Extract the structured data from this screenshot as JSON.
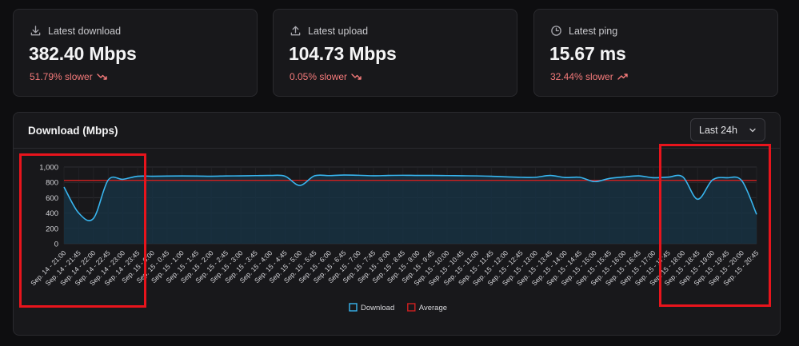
{
  "stats": [
    {
      "label": "Latest download",
      "value": "382.40 Mbps",
      "change": "51.79% slower",
      "trend": "down",
      "icon": "download-icon"
    },
    {
      "label": "Latest upload",
      "value": "104.73 Mbps",
      "change": "0.05% slower",
      "trend": "down",
      "icon": "upload-icon"
    },
    {
      "label": "Latest ping",
      "value": "15.67 ms",
      "change": "32.44% slower",
      "trend": "up",
      "icon": "clock-icon"
    }
  ],
  "chart_card": {
    "title": "Download (Mbps)",
    "range_select": "Last 24h"
  },
  "colors": {
    "download": "#38b6f0",
    "average": "#d02020",
    "negative": "#f47a7a",
    "highlight": "#e8141c"
  },
  "chart_data": {
    "type": "line",
    "ylim": [
      0,
      1000
    ],
    "yticks": [
      "0",
      "200",
      "400",
      "600",
      "800",
      "1,000"
    ],
    "legend": [
      "Download",
      "Average"
    ],
    "average": 826,
    "categories": [
      "Sep. 14 - 21:00",
      "Sep. 14 - 21:45",
      "Sep. 14 - 22:00",
      "Sep. 14 - 22:45",
      "Sep. 14 - 23:00",
      "Sep. 14 - 23:45",
      "Sep. 15 - 0:00",
      "Sep. 15 - 0:45",
      "Sep. 15 - 1:00",
      "Sep. 15 - 1:45",
      "Sep. 15 - 2:00",
      "Sep. 15 - 2:45",
      "Sep. 15 - 3:00",
      "Sep. 15 - 3:45",
      "Sep. 15 - 4:00",
      "Sep. 15 - 4:45",
      "Sep. 15 - 5:00",
      "Sep. 15 - 5:45",
      "Sep. 15 - 6:00",
      "Sep. 15 - 6:45",
      "Sep. 15 - 7:00",
      "Sep. 15 - 7:45",
      "Sep. 15 - 8:00",
      "Sep. 15 - 8:45",
      "Sep. 15 - 9:00",
      "Sep. 15 - 9:45",
      "Sep. 15 - 10:00",
      "Sep. 15 - 10:45",
      "Sep. 15 - 11:00",
      "Sep. 15 - 11:45",
      "Sep. 15 - 12:00",
      "Sep. 15 - 12:45",
      "Sep. 15 - 13:00",
      "Sep. 15 - 13:45",
      "Sep. 15 - 14:00",
      "Sep. 15 - 14:45",
      "Sep. 15 - 15:00",
      "Sep. 15 - 15:45",
      "Sep. 15 - 16:00",
      "Sep. 15 - 16:45",
      "Sep. 15 - 17:00",
      "Sep. 15 - 17:45",
      "Sep. 15 - 18:00",
      "Sep. 15 - 18:45",
      "Sep. 15 - 19:00",
      "Sep. 15 - 19:45",
      "Sep. 15 - 20:00",
      "Sep. 15 - 20:45"
    ],
    "series": [
      {
        "name": "Download",
        "values": [
          740,
          400,
          330,
          830,
          840,
          880,
          880,
          882,
          883,
          882,
          880,
          883,
          885,
          888,
          890,
          880,
          760,
          885,
          888,
          895,
          892,
          886,
          890,
          892,
          890,
          890,
          888,
          886,
          884,
          880,
          872,
          866,
          866,
          890,
          863,
          866,
          810,
          850,
          870,
          885,
          860,
          868,
          870,
          580,
          830,
          860,
          820,
          382
        ]
      },
      {
        "name": "Average",
        "values": [
          826,
          826,
          826,
          826,
          826,
          826,
          826,
          826,
          826,
          826,
          826,
          826,
          826,
          826,
          826,
          826,
          826,
          826,
          826,
          826,
          826,
          826,
          826,
          826,
          826,
          826,
          826,
          826,
          826,
          826,
          826,
          826,
          826,
          826,
          826,
          826,
          826,
          826,
          826,
          826,
          826,
          826,
          826,
          826,
          826,
          826,
          826,
          826
        ]
      }
    ]
  }
}
